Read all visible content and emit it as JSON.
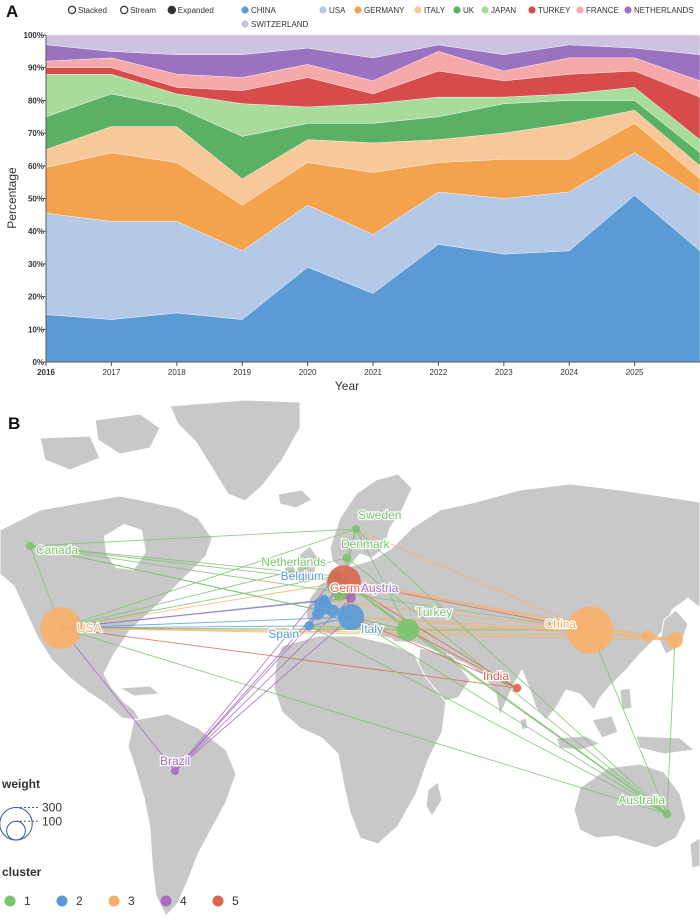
{
  "panels": {
    "a_letter": "A",
    "b_letter": "B"
  },
  "mode_options": [
    {
      "label": "Stacked",
      "selected": false
    },
    {
      "label": "Stream",
      "selected": false
    },
    {
      "label": "Expanded",
      "selected": true
    }
  ],
  "chart_data": [
    {
      "type": "area",
      "mode": "expanded (100% stacked)",
      "xlabel": "Year",
      "ylabel": "Percentage",
      "x": [
        2016,
        2017,
        2018,
        2019,
        2020,
        2021,
        2022,
        2023,
        2024,
        2025,
        2026
      ],
      "x_tick_labels": [
        "2016",
        "2017",
        "2018",
        "2019",
        "2020",
        "2021",
        "2022",
        "2023",
        "2024",
        "2025"
      ],
      "y_tick_labels": [
        "0%",
        "10%",
        "20%",
        "30%",
        "40%",
        "50%",
        "60%",
        "70%",
        "80%",
        "90%",
        "100%"
      ],
      "ylim": [
        0,
        100
      ],
      "legend_position": "top",
      "series": [
        {
          "name": "CHINA",
          "color": "#5b9bd5",
          "values": [
            14.5,
            13,
            15,
            13,
            29,
            21,
            36,
            33,
            34,
            51,
            34
          ]
        },
        {
          "name": "USA",
          "color": "#b4c9e7",
          "values": [
            31,
            30,
            28,
            21,
            19,
            18,
            16,
            17,
            18,
            13,
            17
          ]
        },
        {
          "name": "GERMANY",
          "color": "#f5a24c",
          "values": [
            14,
            21,
            18,
            14,
            13,
            19,
            9,
            12,
            10,
            9,
            5
          ]
        },
        {
          "name": "ITALY",
          "color": "#f8c89a",
          "values": [
            5.5,
            8,
            11,
            8,
            7,
            9,
            7,
            8,
            11,
            4,
            4
          ]
        },
        {
          "name": "UK",
          "color": "#5ab063",
          "values": [
            10,
            10,
            6,
            13,
            5,
            6,
            7,
            9,
            7,
            3,
            4
          ]
        },
        {
          "name": "JAPAN",
          "color": "#a8dc9a",
          "values": [
            13,
            6,
            4,
            10,
            5,
            6,
            6,
            2,
            2,
            4,
            4
          ]
        },
        {
          "name": "TURKEY",
          "color": "#d84b4b",
          "values": [
            2,
            2,
            2,
            4,
            9,
            3,
            8,
            5,
            6,
            5,
            13
          ]
        },
        {
          "name": "FRANCE",
          "color": "#f7a8a8",
          "values": [
            2,
            3,
            4,
            4,
            4,
            4,
            6,
            3,
            5,
            4,
            5
          ]
        },
        {
          "name": "NETHERLANDS",
          "color": "#9b72bf",
          "values": [
            5,
            2,
            6,
            7,
            5,
            7,
            2,
            5,
            4,
            3,
            8
          ]
        },
        {
          "name": "SWITZERLAND",
          "color": "#cdc2e0",
          "values": [
            3,
            5,
            6,
            6,
            4,
            7,
            3,
            6,
            3,
            4,
            6
          ]
        }
      ]
    },
    {
      "type": "network-map",
      "nodes": [
        {
          "name": "USA",
          "cluster": 3,
          "weight": 280
        },
        {
          "name": "Canada",
          "cluster": 1,
          "weight": 10
        },
        {
          "name": "Brazil",
          "cluster": 4,
          "weight": 8
        },
        {
          "name": "Sweden",
          "cluster": 1,
          "weight": 8
        },
        {
          "name": "Denmark",
          "cluster": 1,
          "weight": 12
        },
        {
          "name": "Netherlands",
          "cluster": 1,
          "weight": 20
        },
        {
          "name": "Germany",
          "cluster": 5,
          "weight": 180
        },
        {
          "name": "Belgium",
          "cluster": 2,
          "weight": 18
        },
        {
          "name": "Austria",
          "cluster": 4,
          "weight": 15
        },
        {
          "name": "Spain",
          "cluster": 2,
          "weight": 15
        },
        {
          "name": "Italy",
          "cluster": 2,
          "weight": 110
        },
        {
          "name": "Turkey",
          "cluster": 1,
          "weight": 80
        },
        {
          "name": "China",
          "cluster": 3,
          "weight": 350
        },
        {
          "name": "India",
          "cluster": 5,
          "weight": 12
        },
        {
          "name": "Australia",
          "cluster": 1,
          "weight": 12
        },
        {
          "name": "",
          "cluster": 3,
          "weight": 40
        },
        {
          "name": "",
          "cluster": 3,
          "weight": 20
        },
        {
          "name": "",
          "cluster": 2,
          "weight": 50
        },
        {
          "name": "",
          "cluster": 2,
          "weight": 25
        },
        {
          "name": "",
          "cluster": 1,
          "weight": 30
        },
        {
          "name": "",
          "cluster": 1,
          "weight": 18
        },
        {
          "name": "",
          "cluster": 2,
          "weight": 22
        },
        {
          "name": "",
          "cluster": 4,
          "weight": 12
        }
      ],
      "weight_legend": {
        "title": "weight",
        "values": [
          300,
          100
        ]
      },
      "cluster_legend": {
        "title": "cluster",
        "items": [
          {
            "label": "1",
            "color": "#7cc36e"
          },
          {
            "label": "2",
            "color": "#5b9bd5"
          },
          {
            "label": "3",
            "color": "#f7b06b"
          },
          {
            "label": "4",
            "color": "#a66cc1"
          },
          {
            "label": "5",
            "color": "#d8674f"
          }
        ]
      }
    }
  ]
}
